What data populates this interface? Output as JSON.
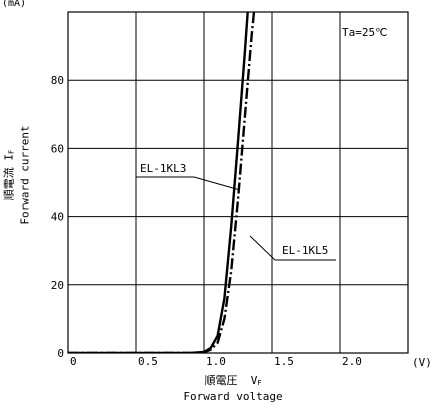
{
  "chart_data": {
    "type": "line",
    "title": "",
    "y_unit": "(mA)",
    "x_unit": "(V)",
    "ylabel_jp": "順電流",
    "ylabel_symbol": "I",
    "ylabel_symbol_sub": "F",
    "ylabel_en": "Forward current",
    "xlabel_jp": "順電圧",
    "xlabel_symbol": "V",
    "xlabel_symbol_sub": "F",
    "xlabel_en": "Forward voltage",
    "condition": "Ta=25℃",
    "xlim": [
      0,
      2.5
    ],
    "ylim": [
      0,
      100
    ],
    "x_ticks": [
      {
        "value": 0,
        "label": "0"
      },
      {
        "value": 0.5,
        "label": "0.5"
      },
      {
        "value": 1.0,
        "label": "1.0"
      },
      {
        "value": 1.5,
        "label": "1.5"
      },
      {
        "value": 2.0,
        "label": "2.0"
      }
    ],
    "y_ticks": [
      {
        "value": 0,
        "label": "0"
      },
      {
        "value": 20,
        "label": "20"
      },
      {
        "value": 40,
        "label": "40"
      },
      {
        "value": 60,
        "label": "60"
      },
      {
        "value": 80,
        "label": "80"
      }
    ],
    "grid": true,
    "series": [
      {
        "name": "EL-1KL3",
        "style": "solid",
        "color": "#000000",
        "x": [
          0,
          0.5,
          0.9,
          1.0,
          1.05,
          1.1,
          1.15,
          1.2,
          1.25,
          1.3,
          1.33
        ],
        "y": [
          0,
          0,
          0,
          0.3,
          1.5,
          5,
          16,
          37,
          62,
          88,
          105
        ]
      },
      {
        "name": "EL-1KL5",
        "style": "dashdot",
        "color": "#000000",
        "x": [
          0,
          0.5,
          0.9,
          1.0,
          1.05,
          1.1,
          1.15,
          1.2,
          1.25,
          1.3,
          1.35,
          1.38
        ],
        "y": [
          0,
          0,
          0,
          0.2,
          1,
          3,
          10,
          24,
          45,
          69,
          93,
          105
        ]
      }
    ]
  }
}
